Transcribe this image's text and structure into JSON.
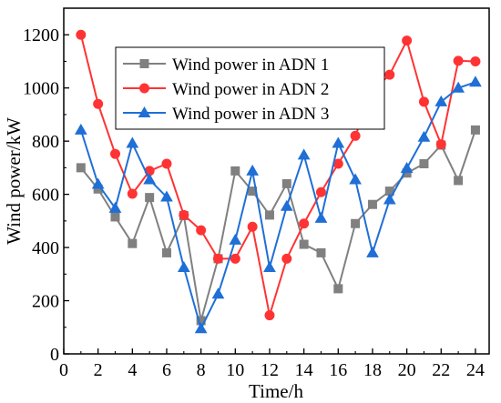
{
  "chart_data": {
    "type": "line",
    "xlabel": "Time/h",
    "ylabel": "Wind power/kW",
    "xlim": [
      0,
      24.8
    ],
    "ylim": [
      0,
      1300
    ],
    "xticks": [
      0,
      2,
      4,
      6,
      8,
      10,
      12,
      14,
      16,
      18,
      20,
      22,
      24
    ],
    "yticks": [
      0,
      200,
      400,
      600,
      800,
      1000,
      1200
    ],
    "grid": false,
    "legend_position": "top-center",
    "x": [
      1,
      2,
      3,
      4,
      5,
      6,
      7,
      8,
      9,
      10,
      11,
      12,
      13,
      14,
      15,
      16,
      17,
      18,
      19,
      20,
      21,
      22,
      23,
      24
    ],
    "series": [
      {
        "name": "Wind power in ADN 1",
        "color": "#808080",
        "marker": "square",
        "values": [
          700,
          620,
          515,
          415,
          588,
          380,
          520,
          125,
          358,
          688,
          612,
          522,
          640,
          412,
          380,
          245,
          490,
          562,
          612,
          680,
          715,
          785,
          652,
          842
        ]
      },
      {
        "name": "Wind power in ADN 2",
        "color": "#ff3333",
        "marker": "circle",
        "values": [
          1200,
          940,
          752,
          602,
          688,
          715,
          522,
          465,
          358,
          358,
          478,
          145,
          358,
          490,
          608,
          715,
          820,
          988,
          1050,
          1178,
          948,
          788,
          1102,
          1100
        ]
      },
      {
        "name": "Wind power in ADN 3",
        "color": "#1f6fd6",
        "marker": "triangle",
        "values": [
          842,
          638,
          548,
          792,
          655,
          590,
          325,
          95,
          225,
          428,
          688,
          325,
          555,
          748,
          510,
          792,
          655,
          380,
          580,
          698,
          815,
          948,
          1000,
          1022
        ]
      }
    ]
  }
}
